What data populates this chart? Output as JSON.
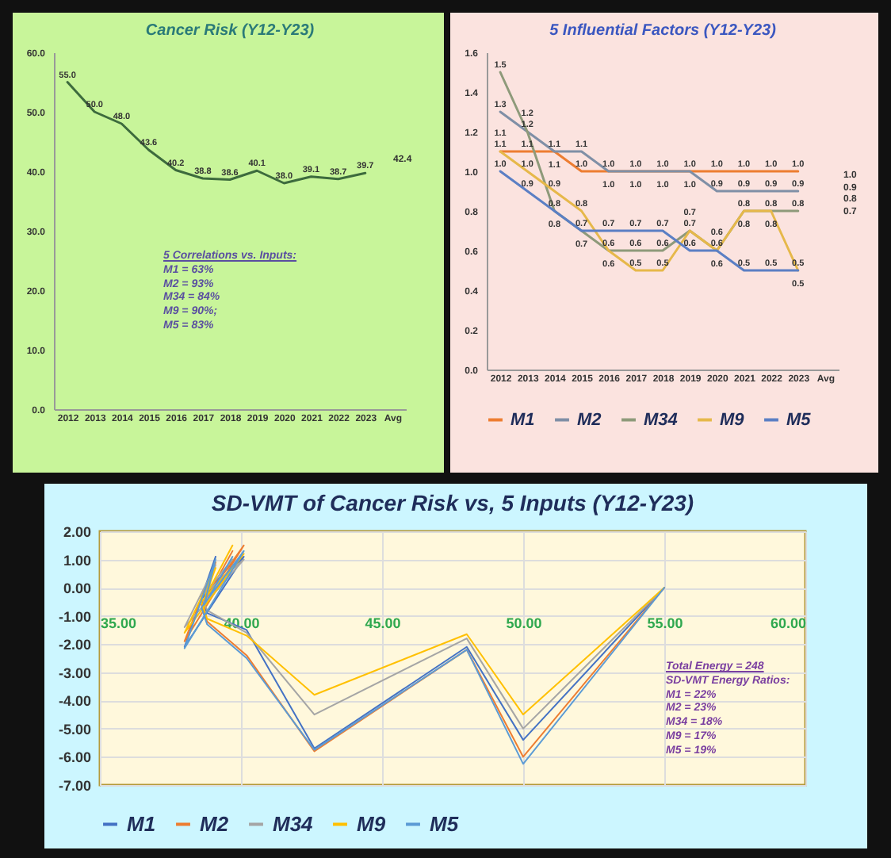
{
  "chart_data": [
    {
      "type": "line",
      "title": "Cancer Risk  (Y12-Y23)",
      "categories": [
        "2012",
        "2013",
        "2014",
        "2015",
        "2016",
        "2017",
        "2018",
        "2019",
        "2020",
        "2021",
        "2022",
        "2023",
        "Avg"
      ],
      "series": [
        {
          "color": "#3d6b3d",
          "values": [
            55.0,
            50.0,
            48.0,
            43.6,
            40.2,
            38.8,
            38.6,
            40.1,
            38.0,
            39.1,
            38.7,
            39.7,
            null
          ],
          "value_labels": [
            "55.0",
            "50.0",
            "48.0",
            "43.6",
            "40.2",
            "38.8",
            "38.6",
            "40.1",
            "38.0",
            "39.1",
            "38.7",
            "39.7",
            null
          ]
        }
      ],
      "ylim": [
        0,
        60
      ],
      "yticks": [
        {
          "value": 0,
          "label": "0.0"
        },
        {
          "value": 10,
          "label": "10.0"
        },
        {
          "value": 20,
          "label": "20.0"
        },
        {
          "value": 30,
          "label": "30.0"
        },
        {
          "value": 40,
          "label": "40.0"
        },
        {
          "value": 50,
          "label": "50.0"
        },
        {
          "value": 60,
          "label": "60.0"
        }
      ],
      "annotations": [
        "42.4",
        "5 Correlations vs. Inputs:",
        "M1 = 63%",
        "M2 = 93%",
        "M34 = 84%",
        "M9 = 90%;",
        "M5 = 83%"
      ],
      "grid": false,
      "legend": false,
      "marker": "none",
      "line_style": "solid"
    },
    {
      "type": "line",
      "title": "5 Influential Factors  (Y12-Y23)",
      "categories": [
        "2012",
        "2013",
        "2014",
        "2015",
        "2016",
        "2017",
        "2018",
        "2019",
        "2020",
        "2021",
        "2022",
        "2023",
        "Avg"
      ],
      "series": [
        {
          "name": "M1",
          "color": "#ed7d31",
          "values": [
            1.1,
            1.1,
            1.1,
            1.0,
            1.0,
            1.0,
            1.0,
            1.0,
            1.0,
            1.0,
            1.0,
            1.0,
            null
          ],
          "value_labels": [
            "1.1",
            "1.1",
            "1.1",
            "1.0",
            "1.0",
            "1.0",
            "1.0",
            "1.0",
            "1.0",
            "1.0",
            "1.0",
            "1.0",
            null
          ]
        },
        {
          "name": "M2",
          "color": "#7f8fa6",
          "values": [
            1.3,
            1.2,
            1.1,
            1.1,
            1.0,
            1.0,
            1.0,
            1.0,
            0.9,
            0.9,
            0.9,
            0.9,
            null
          ],
          "value_labels": [
            "1.3",
            "1.2",
            "1.1",
            "1.1",
            "1.0",
            "1.0",
            "1.0",
            "1.0",
            "0.9",
            "0.9",
            "0.9",
            "0.9",
            null
          ]
        },
        {
          "name": "M34",
          "color": "#8e9a7a",
          "values": [
            1.5,
            1.2,
            0.8,
            0.7,
            0.6,
            0.6,
            0.6,
            0.7,
            0.6,
            0.8,
            0.8,
            0.8,
            null
          ],
          "value_labels": [
            "1.5",
            "1.2",
            "0.8",
            "0.7",
            "0.6",
            "0.6",
            "0.6",
            "0.7",
            "0.6",
            "0.8",
            "0.8",
            "0.8",
            null
          ]
        },
        {
          "name": "M9",
          "color": "#e6b84a",
          "values": [
            1.1,
            1.0,
            0.9,
            0.8,
            0.6,
            0.5,
            0.5,
            0.7,
            0.6,
            0.8,
            0.8,
            0.5,
            null
          ],
          "value_labels": [
            "1.1",
            "1.0",
            "0.9",
            "0.8",
            "0.6",
            "0.5",
            "0.5",
            "0.7",
            "0.6",
            "0.8",
            "0.8",
            "0.5",
            null
          ]
        },
        {
          "name": "M5",
          "color": "#5b7fc4",
          "values": [
            1.0,
            0.9,
            0.8,
            0.7,
            0.7,
            0.7,
            0.7,
            0.6,
            0.6,
            0.5,
            0.5,
            0.5,
            null
          ],
          "value_labels": [
            "1.0",
            "0.9",
            "0.8",
            "0.7",
            "0.7",
            "0.7",
            "0.7",
            "0.6",
            "0.6",
            "0.5",
            "0.5",
            "0.5",
            null
          ]
        }
      ],
      "ylim": [
        0,
        1.6
      ],
      "yticks": [
        {
          "value": 0,
          "label": "0.0"
        },
        {
          "value": 0.2,
          "label": "0.2"
        },
        {
          "value": 0.4,
          "label": "0.4"
        },
        {
          "value": 0.6,
          "label": "0.6"
        },
        {
          "value": 0.8,
          "label": "0.8"
        },
        {
          "value": 1,
          "label": "1.0"
        },
        {
          "value": 1.2,
          "label": "1.2"
        },
        {
          "value": 1.4,
          "label": "1.4"
        },
        {
          "value": 1.6,
          "label": "1.6"
        }
      ],
      "annotations": [
        "1.0",
        "0.9",
        "0.8",
        "0.7"
      ],
      "grid": false,
      "legend": "bottom",
      "marker": "none",
      "line_style": "solid"
    },
    {
      "type": "line",
      "title": "SD-VMT of Cancer Risk vs, 5 Inputs  (Y12-Y23)",
      "x": [
        55.0,
        50.0,
        48.0,
        42.6,
        40.2,
        38.8,
        38.6,
        40.1,
        38.0,
        39.1,
        38.7,
        39.7
      ],
      "series": [
        {
          "name": "M1",
          "color": "#4472c4",
          "values": [
            0,
            -5.4,
            -2.1,
            -5.7,
            -1.5,
            -0.9,
            -0.4,
            1.1,
            -2.1,
            1.1,
            -0.3,
            0.9
          ]
        },
        {
          "name": "M2",
          "color": "#ed7d31",
          "values": [
            0,
            -6.0,
            -2.2,
            -5.8,
            -2.4,
            -1.2,
            -0.6,
            1.5,
            -1.9,
            0.9,
            -0.5,
            1.3
          ]
        },
        {
          "name": "M34",
          "color": "#a5a5a5",
          "values": [
            0,
            -5.0,
            -1.8,
            -4.5,
            -1.6,
            -0.8,
            -0.3,
            1.0,
            -1.4,
            0.8,
            -0.2,
            1.0
          ]
        },
        {
          "name": "M9",
          "color": "#ffc000",
          "values": [
            0,
            -4.5,
            -1.65,
            -3.8,
            -1.7,
            -1.1,
            -0.5,
            1.2,
            -1.6,
            0.7,
            -0.4,
            1.5
          ]
        },
        {
          "name": "M5",
          "color": "#5b9bd5",
          "values": [
            0,
            -6.25,
            -2.2,
            -5.75,
            -2.5,
            -1.3,
            -0.7,
            1.3,
            -2.15,
            1.0,
            -0.6,
            1.1
          ]
        }
      ],
      "xlim": [
        35,
        60
      ],
      "xticks": [
        {
          "value": 35,
          "label": "35.00"
        },
        {
          "value": 40,
          "label": "40.00"
        },
        {
          "value": 45,
          "label": "45.00"
        },
        {
          "value": 50,
          "label": "50.00"
        },
        {
          "value": 55,
          "label": "55.00"
        },
        {
          "value": 60,
          "label": "60.00"
        }
      ],
      "ylim": [
        -7,
        2
      ],
      "yticks": [
        {
          "value": -7,
          "label": "-7.00"
        },
        {
          "value": -6,
          "label": "-6.00"
        },
        {
          "value": -5,
          "label": "-5.00"
        },
        {
          "value": -4,
          "label": "-4.00"
        },
        {
          "value": -3,
          "label": "-3.00"
        },
        {
          "value": -2,
          "label": "-2.00"
        },
        {
          "value": -1,
          "label": "-1.00"
        },
        {
          "value": 0,
          "label": "0.00"
        },
        {
          "value": 1,
          "label": "1.00"
        },
        {
          "value": 2,
          "label": "2.00"
        }
      ],
      "annotations": [
        "Total Energy = 248",
        "SD-VMT Energy Ratios:",
        "M1 = 22%",
        "M2 = 23%",
        "M34 = 18%",
        "M9 = 17%",
        "M5 = 19%"
      ],
      "grid": true,
      "legend": "bottom",
      "marker": "none",
      "line_style": "solid"
    }
  ]
}
